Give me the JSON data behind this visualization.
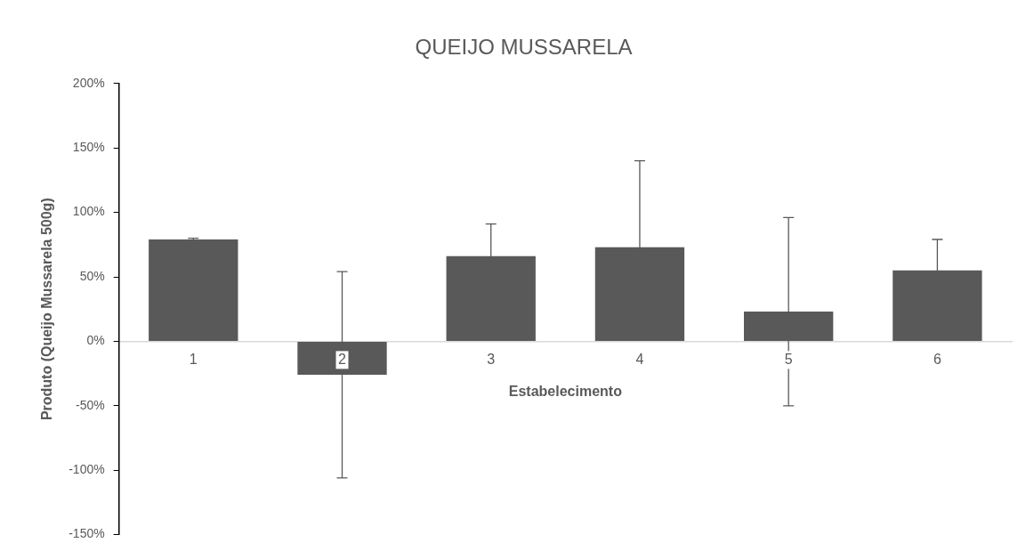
{
  "chart_data": {
    "type": "bar",
    "title": "QUEIJO MUSSARELA",
    "xlabel": "Estabelecimento",
    "ylabel": "Produto (Queijo Mussarela 500g)",
    "categories": [
      "1",
      "2",
      "3",
      "4",
      "5",
      "6"
    ],
    "values": [
      79,
      -26,
      66,
      73,
      23,
      55
    ],
    "errors": [
      1,
      80,
      25,
      67,
      73,
      24
    ],
    "color": "#595959",
    "ylim": [
      -150,
      200
    ],
    "yticks": [
      {
        "value": -150,
        "label": "-150%"
      },
      {
        "value": -100,
        "label": "-100%"
      },
      {
        "value": -50,
        "label": "-50%"
      },
      {
        "value": 0,
        "label": "0%"
      },
      {
        "value": 50,
        "label": "50%"
      },
      {
        "value": 100,
        "label": "100%"
      },
      {
        "value": 150,
        "label": "150%"
      },
      {
        "value": 200,
        "label": "200%"
      }
    ],
    "grid": false,
    "legend": false
  }
}
